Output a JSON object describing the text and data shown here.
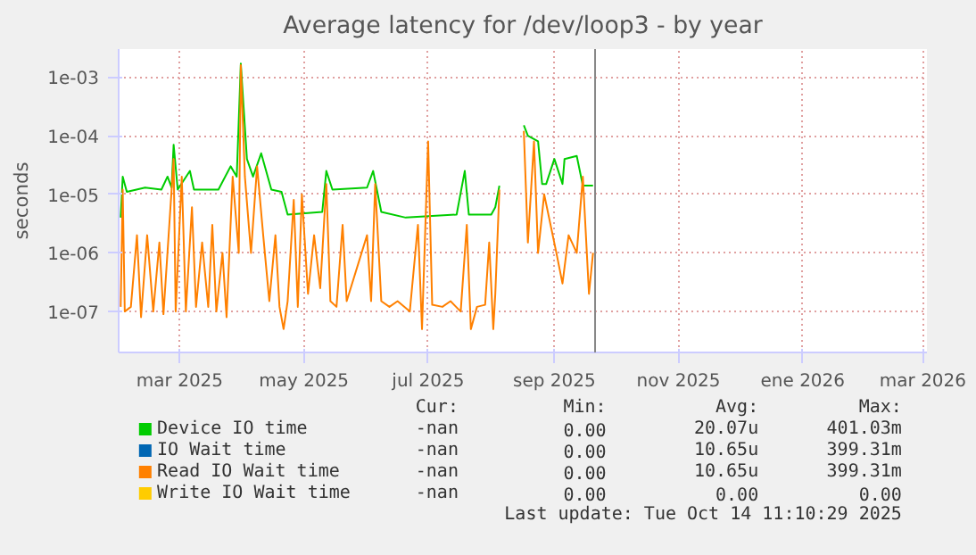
{
  "chart_data": {
    "type": "line",
    "title": "Average latency for /dev/loop3 - by year",
    "ylabel": "seconds",
    "log": true,
    "grid": true,
    "legend": "bottom",
    "xlim": [
      "2025-01-30",
      "2026-03-03"
    ],
    "xticks": [
      {
        "value": "2025-03-01",
        "label": "mar 2025"
      },
      {
        "value": "2025-05-01",
        "label": "may 2025"
      },
      {
        "value": "2025-07-01",
        "label": "jul 2025"
      },
      {
        "value": "2025-09-01",
        "label": "sep 2025"
      },
      {
        "value": "2025-11-01",
        "label": "nov 2025"
      },
      {
        "value": "2026-01-01",
        "label": "ene 2026"
      },
      {
        "value": "2026-03-01",
        "label": "mar 2026"
      }
    ],
    "ylim": [
      2e-08,
      0.003
    ],
    "yticks": [
      {
        "value": 1e-07,
        "label": "1e-07"
      },
      {
        "value": 1e-06,
        "label": "1e-06"
      },
      {
        "value": 1e-05,
        "label": "1e-05"
      },
      {
        "value": 0.0001,
        "label": "1e-04"
      },
      {
        "value": 0.001,
        "label": "1e-03"
      }
    ],
    "series": [
      {
        "name": "Device IO time",
        "color": "#00cc00",
        "x": [
          "2025-01-31",
          "2025-02-01",
          "2025-02-03",
          "2025-02-12",
          "2025-02-20",
          "2025-02-23",
          "2025-02-25",
          "2025-02-26",
          "2025-02-28",
          "2025-03-06",
          "2025-03-08",
          "2025-03-20",
          "2025-03-26",
          "2025-03-29",
          "2025-03-31",
          "2025-04-03",
          "2025-04-06",
          "2025-04-10",
          "2025-04-15",
          "2025-04-20",
          "2025-04-23",
          "2025-05-10",
          "2025-05-12",
          "2025-05-15",
          "2025-06-01",
          "2025-06-04",
          "2025-06-08",
          "2025-06-20",
          "2025-07-15",
          "2025-07-19",
          "2025-07-21",
          "2025-08-01",
          "2025-08-03",
          "2025-08-05",
          "2025-08-07",
          "2025-08-17",
          "2025-08-19",
          "2025-08-24",
          "2025-08-26",
          "2025-08-28",
          "2025-09-01",
          "2025-09-05",
          "2025-09-06",
          "2025-09-12",
          "2025-09-15",
          "2025-09-20"
        ],
        "values": [
          4e-06,
          2e-05,
          1.1e-05,
          1.3e-05,
          1.2e-05,
          2e-05,
          1.3e-05,
          7e-05,
          1.2e-05,
          2.5e-05,
          1.2e-05,
          1.2e-05,
          3e-05,
          2e-05,
          0.0017,
          4e-05,
          2e-05,
          5e-05,
          1.2e-05,
          1.1e-05,
          4.5e-06,
          5e-06,
          2.5e-05,
          1.2e-05,
          1.3e-05,
          2.5e-05,
          5e-06,
          4e-06,
          4.5e-06,
          2.5e-05,
          4.5e-06,
          4.5e-06,
          6e-06,
          1.4e-05,
          null,
          0.00015,
          0.0001,
          8e-05,
          1.5e-05,
          1.5e-05,
          4e-05,
          1.5e-05,
          4e-05,
          4.5e-05,
          1.4e-05,
          1.4e-05
        ]
      },
      {
        "name": "IO Wait time",
        "color": "#0066b3"
      },
      {
        "name": "Read IO Wait time",
        "color": "#ff8000",
        "x": [
          "2025-01-31",
          "2025-02-01",
          "2025-02-02",
          "2025-02-05",
          "2025-02-08",
          "2025-02-10",
          "2025-02-13",
          "2025-02-16",
          "2025-02-19",
          "2025-02-21",
          "2025-02-26",
          "2025-02-27",
          "2025-03-02",
          "2025-03-04",
          "2025-03-07",
          "2025-03-09",
          "2025-03-12",
          "2025-03-15",
          "2025-03-17",
          "2025-03-19",
          "2025-03-22",
          "2025-03-24",
          "2025-03-27",
          "2025-03-30",
          "2025-03-31",
          "2025-04-02",
          "2025-04-05",
          "2025-04-08",
          "2025-04-11",
          "2025-04-14",
          "2025-04-17",
          "2025-04-19",
          "2025-04-21",
          "2025-04-23",
          "2025-04-26",
          "2025-04-28",
          "2025-04-30",
          "2025-05-03",
          "2025-05-06",
          "2025-05-09",
          "2025-05-12",
          "2025-05-14",
          "2025-05-17",
          "2025-05-20",
          "2025-05-22",
          "2025-06-01",
          "2025-06-03",
          "2025-06-05",
          "2025-06-08",
          "2025-06-12",
          "2025-06-16",
          "2025-06-22",
          "2025-06-26",
          "2025-06-28",
          "2025-07-01",
          "2025-07-03",
          "2025-07-08",
          "2025-07-12",
          "2025-07-17",
          "2025-07-20",
          "2025-07-22",
          "2025-07-25",
          "2025-07-29",
          "2025-07-31",
          "2025-08-02",
          "2025-08-03",
          "2025-08-05",
          "2025-08-08",
          "2025-08-17",
          "2025-08-19",
          "2025-08-22",
          "2025-08-24",
          "2025-08-27",
          "2025-09-02",
          "2025-09-05",
          "2025-09-08",
          "2025-09-12",
          "2025-09-15",
          "2025-09-18",
          "2025-09-20"
        ],
        "values": [
          1.2e-07,
          1.2e-05,
          1e-07,
          1.2e-07,
          2e-06,
          8e-08,
          2e-06,
          1e-07,
          1.5e-06,
          9e-08,
          4e-05,
          1e-07,
          2e-05,
          1e-07,
          6e-06,
          1.2e-07,
          1.5e-06,
          1.2e-07,
          3e-06,
          1e-07,
          1e-06,
          8e-08,
          2e-05,
          1e-06,
          0.0016,
          2e-05,
          1e-06,
          3e-05,
          2e-06,
          1.5e-07,
          2e-06,
          1.2e-07,
          5e-08,
          1.5e-07,
          8e-06,
          1.2e-07,
          1e-05,
          2e-07,
          2e-06,
          2.5e-07,
          1.5e-05,
          1.5e-07,
          1.2e-07,
          3e-06,
          1.5e-07,
          2e-06,
          1.5e-07,
          1.5e-05,
          1.5e-07,
          1.2e-07,
          1.5e-07,
          1e-07,
          3e-06,
          5e-08,
          8e-05,
          1.3e-07,
          1.2e-07,
          1.5e-07,
          1e-07,
          3e-06,
          5e-08,
          1.2e-07,
          1.3e-07,
          1.5e-06,
          5e-08,
          2e-07,
          1.2e-05,
          null,
          0.00012,
          1.5e-06,
          8e-05,
          1e-06,
          1e-05,
          1e-06,
          3e-07,
          2e-06,
          1e-06,
          2e-05,
          2e-07,
          1e-06
        ]
      },
      {
        "name": "Write IO Wait time",
        "color": "#ffcc00"
      }
    ],
    "ref_lines": [
      {
        "axis": "x",
        "value": "2025-09-21",
        "color": "#888888"
      }
    ],
    "annotations": [
      "Cur:",
      "Min:",
      "Avg:",
      "Max:",
      "-nan",
      "0.00",
      "20.07u",
      "401.03m",
      "-nan",
      "0.00",
      "10.65u",
      "399.31m",
      "-nan",
      "0.00",
      "10.65u",
      "399.31m",
      "-nan",
      "0.00",
      "0.00",
      "0.00",
      "Last update: Tue Oct 14 11:10:29 2025"
    ]
  }
}
